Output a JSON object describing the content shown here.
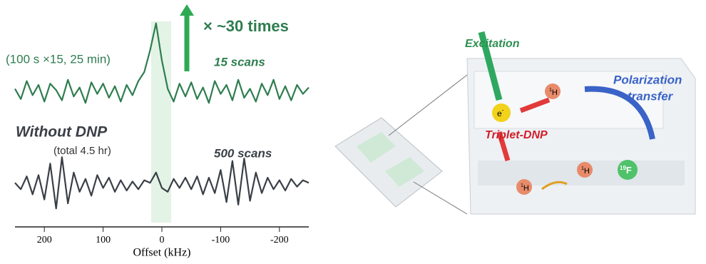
{
  "chart_data": {
    "type": "line",
    "x_label": "Offset (kHz)",
    "xlim": [
      250,
      -250
    ],
    "xticks": [
      200,
      100,
      0,
      -100,
      -200
    ],
    "x": [
      250,
      240,
      230,
      220,
      210,
      200,
      190,
      180,
      170,
      160,
      150,
      140,
      130,
      120,
      110,
      100,
      90,
      80,
      70,
      60,
      50,
      40,
      30,
      20,
      10,
      0,
      -10,
      -20,
      -30,
      -40,
      -50,
      -60,
      -70,
      -80,
      -90,
      -100,
      -110,
      -120,
      -130,
      -140,
      -150,
      -160,
      -170,
      -180,
      -190,
      -200,
      -210,
      -220,
      -230,
      -240,
      -250
    ],
    "series": [
      {
        "name": "15 scans",
        "color": "#2e7d4f",
        "values": [
          0.2,
          -0.6,
          0.8,
          -0.3,
          0.5,
          -0.8,
          0.6,
          0.1,
          -0.7,
          0.9,
          -0.4,
          0.3,
          -0.9,
          0.7,
          -0.2,
          0.6,
          -0.5,
          0.4,
          -0.8,
          0.5,
          -0.3,
          0.8,
          1.5,
          3.2,
          5.3,
          2.4,
          0.2,
          -0.8,
          0.6,
          -0.4,
          0.7,
          -0.6,
          0.3,
          -0.9,
          0.8,
          -0.2,
          0.5,
          -0.7,
          0.9,
          -0.5,
          0.2,
          -0.8,
          0.6,
          -0.3,
          0.9,
          -0.6,
          0.4,
          -0.7,
          0.5,
          -0.2,
          0.3
        ]
      },
      {
        "name": "500 scans",
        "color": "#3a3f47",
        "values": [
          0.1,
          -0.4,
          0.6,
          -0.8,
          0.7,
          -1.2,
          1.6,
          -1.9,
          2.1,
          -1.5,
          0.9,
          -0.6,
          0.4,
          -0.9,
          0.7,
          -0.3,
          0.5,
          -0.6,
          0.3,
          -0.5,
          0.2,
          -0.4,
          0.3,
          0.1,
          0.9,
          -0.3,
          -0.6,
          0.4,
          -0.3,
          0.5,
          -0.4,
          0.6,
          -0.8,
          0.5,
          -0.7,
          1.1,
          -1.4,
          1.8,
          -1.6,
          2.0,
          -1.3,
          0.9,
          -0.7,
          0.5,
          -0.4,
          0.3,
          -0.5,
          0.4,
          -0.2,
          0.3,
          0.1
        ]
      }
    ],
    "annotations": [
      "× ~30 times",
      "(100 s ×15, 25 min)",
      "Without DNP",
      "(total 4.5 hr)"
    ]
  },
  "diagram": {
    "excitation": "Excitation",
    "polarization": [
      "Polarization",
      "transfer"
    ],
    "triplet": "Triplet-DNP",
    "electron": {
      "base": "e",
      "sup": "-"
    },
    "proton": {
      "base": "H",
      "sup": "1"
    },
    "fluorine": {
      "base": "F",
      "sup": "19"
    }
  }
}
